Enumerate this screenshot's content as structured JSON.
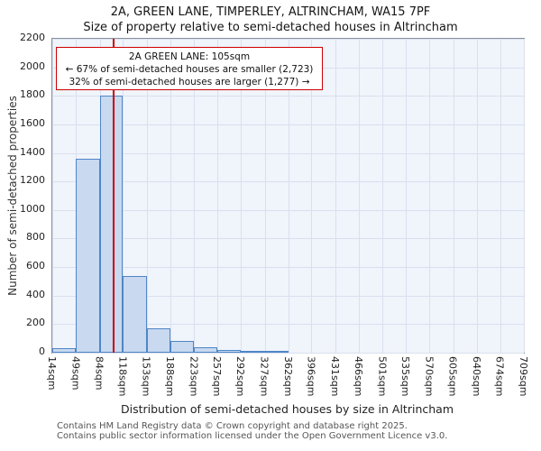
{
  "title": "2A, GREEN LANE, TIMPERLEY, ALTRINCHAM, WA15 7PF",
  "subtitle": "Size of property relative to semi-detached houses in Altrincham",
  "annotation": {
    "line1": "2A GREEN LANE: 105sqm",
    "line2": "← 67% of semi-detached houses are smaller (2,723)",
    "line3": "32% of semi-detached houses are larger (1,277) →"
  },
  "footer": {
    "line1": "Contains HM Land Registry data © Crown copyright and database right 2025.",
    "line2": "Contains public sector information licensed under the Open Government Licence v3.0."
  },
  "chart_data": {
    "type": "bar",
    "title": "Size of property relative to semi-detached houses in Altrincham",
    "xlabel": "Distribution of semi-detached houses by size in Altrincham",
    "ylabel": "Number of semi-detached properties",
    "bin_edges_sqm": [
      14,
      49,
      84,
      118,
      153,
      188,
      223,
      257,
      292,
      327,
      362,
      396,
      431,
      466,
      501,
      535,
      570,
      605,
      640,
      674,
      709
    ],
    "tick_labels": [
      "14sqm",
      "49sqm",
      "84sqm",
      "118sqm",
      "153sqm",
      "188sqm",
      "223sqm",
      "257sqm",
      "292sqm",
      "327sqm",
      "362sqm",
      "396sqm",
      "431sqm",
      "466sqm",
      "501sqm",
      "535sqm",
      "570sqm",
      "605sqm",
      "640sqm",
      "674sqm",
      "709sqm"
    ],
    "values": [
      30,
      1360,
      1800,
      540,
      170,
      80,
      35,
      20,
      12,
      8,
      0,
      0,
      0,
      0,
      0,
      0,
      0,
      0,
      0,
      0
    ],
    "marker_sqm": 105,
    "marker_label": "2A GREEN LANE: 105sqm",
    "pct_smaller": 67,
    "count_smaller": 2723,
    "pct_larger": 32,
    "count_larger": 1277,
    "ylim": [
      0,
      2200
    ],
    "ytick_step": 200,
    "grid": true,
    "colors": {
      "bar_fill": "#c8d9f0",
      "bar_edge": "#4f86c6",
      "marker": "#cc0000",
      "grid": "#d9e0ee"
    }
  }
}
